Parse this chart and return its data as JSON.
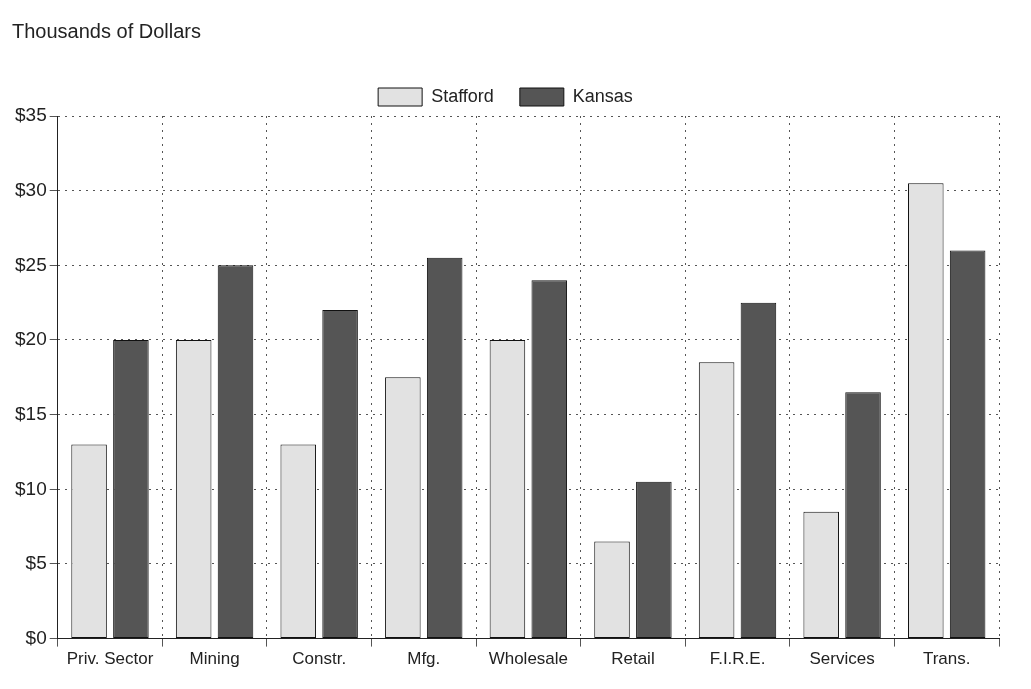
{
  "chart_data": {
    "type": "bar",
    "title": "Thousands of Dollars",
    "categories": [
      "Priv. Sector",
      "Mining",
      "Constr.",
      "Mfg.",
      "Wholesale",
      "Retail",
      "F.I.R.E.",
      "Services",
      "Trans."
    ],
    "series": [
      {
        "name": "Stafford",
        "color": "#e2e2e2",
        "values": [
          13,
          20,
          13,
          17.5,
          20,
          6.5,
          18.5,
          8.5,
          30.5
        ]
      },
      {
        "name": "Kansas",
        "color": "#555555",
        "values": [
          20,
          25,
          22,
          25.5,
          24,
          10.5,
          22.5,
          16.5,
          26
        ]
      }
    ],
    "ylim": [
      0,
      35
    ],
    "yticks": [
      {
        "value": 0,
        "label": "$0"
      },
      {
        "value": 5,
        "label": "$5"
      },
      {
        "value": 10,
        "label": "$10"
      },
      {
        "value": 15,
        "label": "$15"
      },
      {
        "value": 20,
        "label": "$20"
      },
      {
        "value": 25,
        "label": "$25"
      },
      {
        "value": 30,
        "label": "$30"
      },
      {
        "value": 35,
        "label": "$35"
      }
    ],
    "grid": true,
    "legend": "top"
  }
}
